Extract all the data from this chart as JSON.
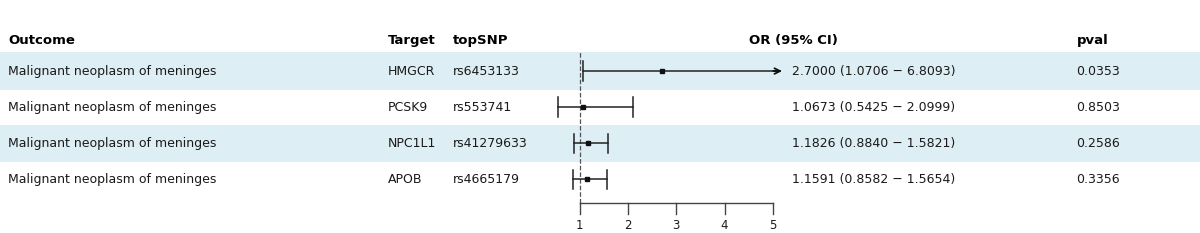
{
  "rows": [
    {
      "outcome": "Malignant neoplasm of meninges",
      "target": "HMGCR",
      "topsnp": "rs6453133",
      "or": 2.7,
      "ci_low": 1.0706,
      "ci_high": 6.8093,
      "pval": "0.0353",
      "or_text": "2.7000 (1.0706 − 6.8093)",
      "arrow": true,
      "row_bg": "#deeef5"
    },
    {
      "outcome": "Malignant neoplasm of meninges",
      "target": "PCSK9",
      "topsnp": "rs553741",
      "or": 1.0673,
      "ci_low": 0.5425,
      "ci_high": 2.0999,
      "pval": "0.8503",
      "or_text": "1.0673 (0.5425 − 2.0999)",
      "arrow": false,
      "row_bg": "#ffffff"
    },
    {
      "outcome": "Malignant neoplasm of meninges",
      "target": "NPC1L1",
      "topsnp": "rs41279633",
      "or": 1.1826,
      "ci_low": 0.884,
      "ci_high": 1.5821,
      "pval": "0.2586",
      "or_text": "1.1826 (0.8840 − 1.5821)",
      "arrow": false,
      "row_bg": "#deeef5"
    },
    {
      "outcome": "Malignant neoplasm of meninges",
      "target": "APOB",
      "topsnp": "rs4665179",
      "or": 1.1591,
      "ci_low": 0.8582,
      "ci_high": 1.5654,
      "pval": "0.3356",
      "or_text": "1.1591 (0.8582 − 1.5654)",
      "arrow": false,
      "row_bg": "#ffffff"
    }
  ],
  "header": {
    "outcome": "Outcome",
    "target": "Target",
    "topsnp": "topSNP",
    "or_ci": "OR (95% CI)",
    "pval": "pval"
  },
  "axis_min": 0.5,
  "axis_max": 5.5,
  "axis_ticks": [
    1,
    2,
    3,
    4,
    5
  ],
  "ref_line": 1.0,
  "text_color": "#1a1a1a",
  "header_color": "#000000",
  "ci_line_color": "#222222",
  "dot_color": "#111111",
  "ref_line_color": "#555555",
  "arrow_color": "#111111",
  "axis_line_color": "#444444",
  "font_size": 9.0,
  "header_font_size": 9.5
}
